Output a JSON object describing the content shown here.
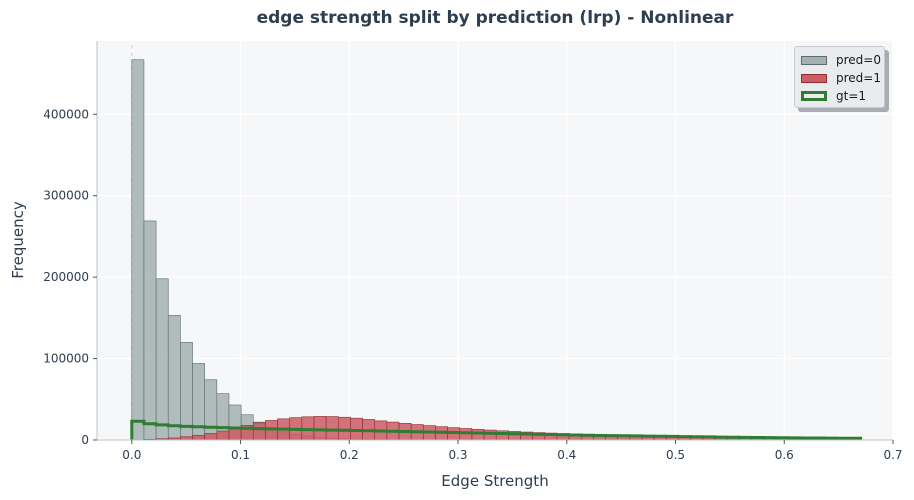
{
  "chart_data": {
    "type": "histogram",
    "title": "edge strength split by prediction (lrp) - Nonlinear",
    "xlabel": "Edge Strength",
    "ylabel": "Frequency",
    "xlim": [
      -0.032,
      0.7
    ],
    "ylim": [
      0,
      490000
    ],
    "xticks": [
      "0.0",
      "0.1",
      "0.2",
      "0.3",
      "0.4",
      "0.5",
      "0.6",
      "0.7"
    ],
    "yticks": [
      "0",
      "100000",
      "200000",
      "300000",
      "400000"
    ],
    "bin_width": 0.01117,
    "bin_start": 0.0,
    "grid": true,
    "legend_position": "top-right",
    "series": [
      {
        "name": "pred=0",
        "style": "filled-bar",
        "color": "#a3b1b2",
        "edge_color": "#5d6d6e",
        "values": [
          467000,
          269000,
          198000,
          153000,
          120000,
          94000,
          74000,
          57000,
          43000,
          31000,
          22000,
          15000,
          10000,
          7000,
          5000,
          3000,
          2000,
          1500,
          1000,
          800,
          600,
          400,
          300,
          200,
          150,
          100,
          80,
          60,
          40,
          30,
          20,
          15,
          10,
          8,
          6,
          4,
          3,
          2,
          1,
          1,
          1,
          0,
          0,
          0,
          0,
          0,
          0,
          0,
          0,
          0,
          0,
          0,
          0,
          0,
          0,
          0,
          0,
          0,
          0,
          0
        ]
      },
      {
        "name": "pred=1",
        "style": "filled-bar",
        "color": "#cd5c63",
        "edge_color": "#8b2e35",
        "values": [
          300,
          800,
          1500,
          2500,
          4000,
          5800,
          8000,
          11000,
          14500,
          18000,
          21000,
          24000,
          26000,
          27500,
          28500,
          29000,
          28800,
          28000,
          26800,
          25200,
          23500,
          22000,
          20500,
          19000,
          17700,
          16400,
          15200,
          14100,
          13100,
          12200,
          11300,
          10500,
          9800,
          9100,
          8500,
          7900,
          7400,
          6900,
          6400,
          6000,
          5600,
          5200,
          4900,
          4600,
          4300,
          4000,
          3800,
          3600,
          3400,
          3200,
          3050,
          2900,
          2750,
          2600,
          2500,
          2400,
          2300,
          2200,
          2100,
          2000
        ]
      },
      {
        "name": "gt=1",
        "style": "step-outline",
        "color": "#2e7d32",
        "values": [
          23000,
          20000,
          18500,
          17500,
          16800,
          16200,
          15700,
          15200,
          14800,
          14400,
          14000,
          13700,
          13400,
          13100,
          12800,
          12500,
          12200,
          11900,
          11600,
          11300,
          11000,
          10700,
          10400,
          10100,
          9800,
          9500,
          9200,
          8900,
          8600,
          8300,
          8000,
          7700,
          7400,
          7100,
          6800,
          6500,
          6200,
          5900,
          5600,
          5400,
          5200,
          5000,
          4800,
          4600,
          4400,
          4200,
          4000,
          3800,
          3600,
          3400,
          3250,
          3100,
          2950,
          2800,
          2650,
          2500,
          2400,
          2300,
          2200,
          2100
        ]
      }
    ]
  }
}
